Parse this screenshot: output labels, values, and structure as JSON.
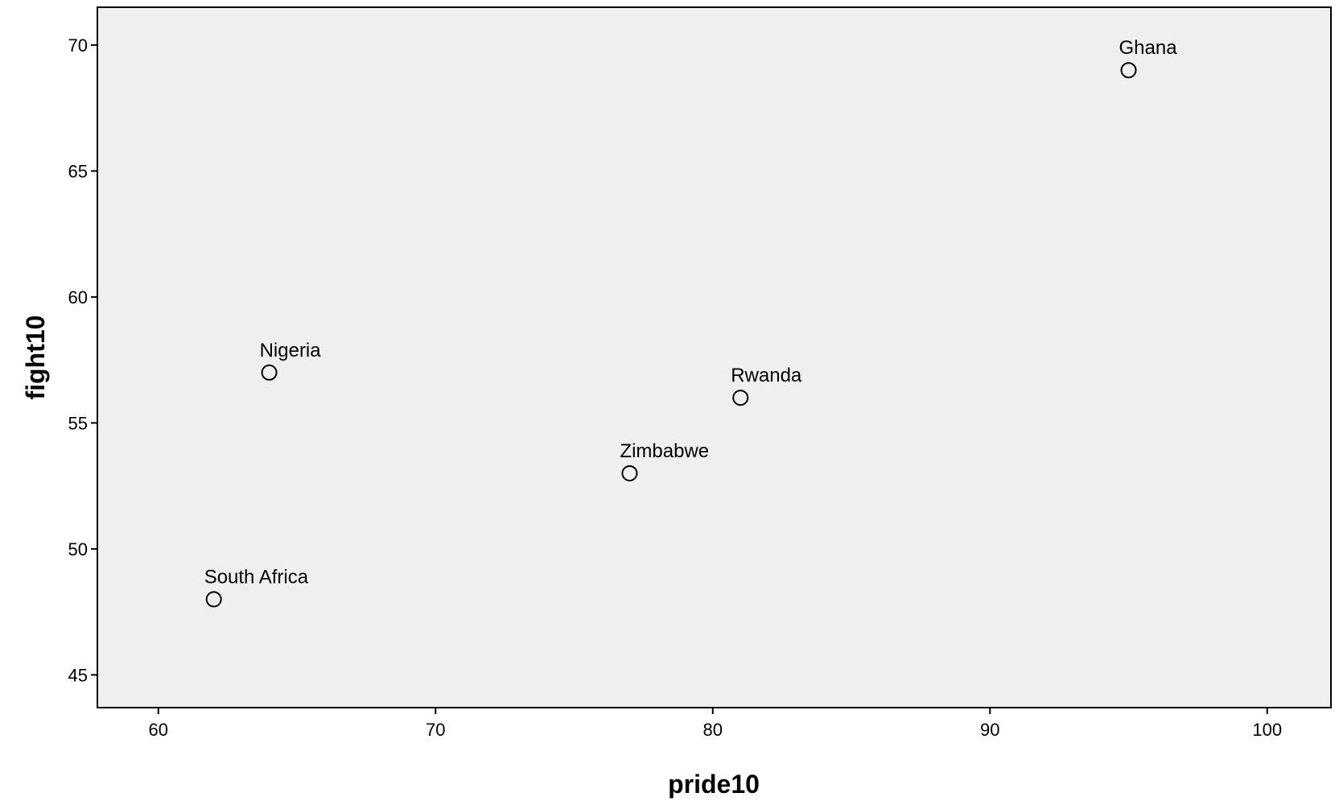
{
  "chart_data": {
    "type": "scatter",
    "title": "",
    "xlabel": "pride10",
    "ylabel": "fight10",
    "xlim": [
      57.8,
      102.3
    ],
    "ylim": [
      43.7,
      71.5
    ],
    "xticks": [
      60,
      70,
      80,
      90,
      100
    ],
    "yticks": [
      45,
      50,
      55,
      60,
      65,
      70
    ],
    "grid": false,
    "plot_background": "#efefef",
    "points": [
      {
        "label": "Ghana",
        "x": 95,
        "y": 69
      },
      {
        "label": "Nigeria",
        "x": 64,
        "y": 57
      },
      {
        "label": "Rwanda",
        "x": 81,
        "y": 56
      },
      {
        "label": "Zimbabwe",
        "x": 77,
        "y": 53
      },
      {
        "label": "South Africa",
        "x": 62,
        "y": 48
      }
    ]
  }
}
